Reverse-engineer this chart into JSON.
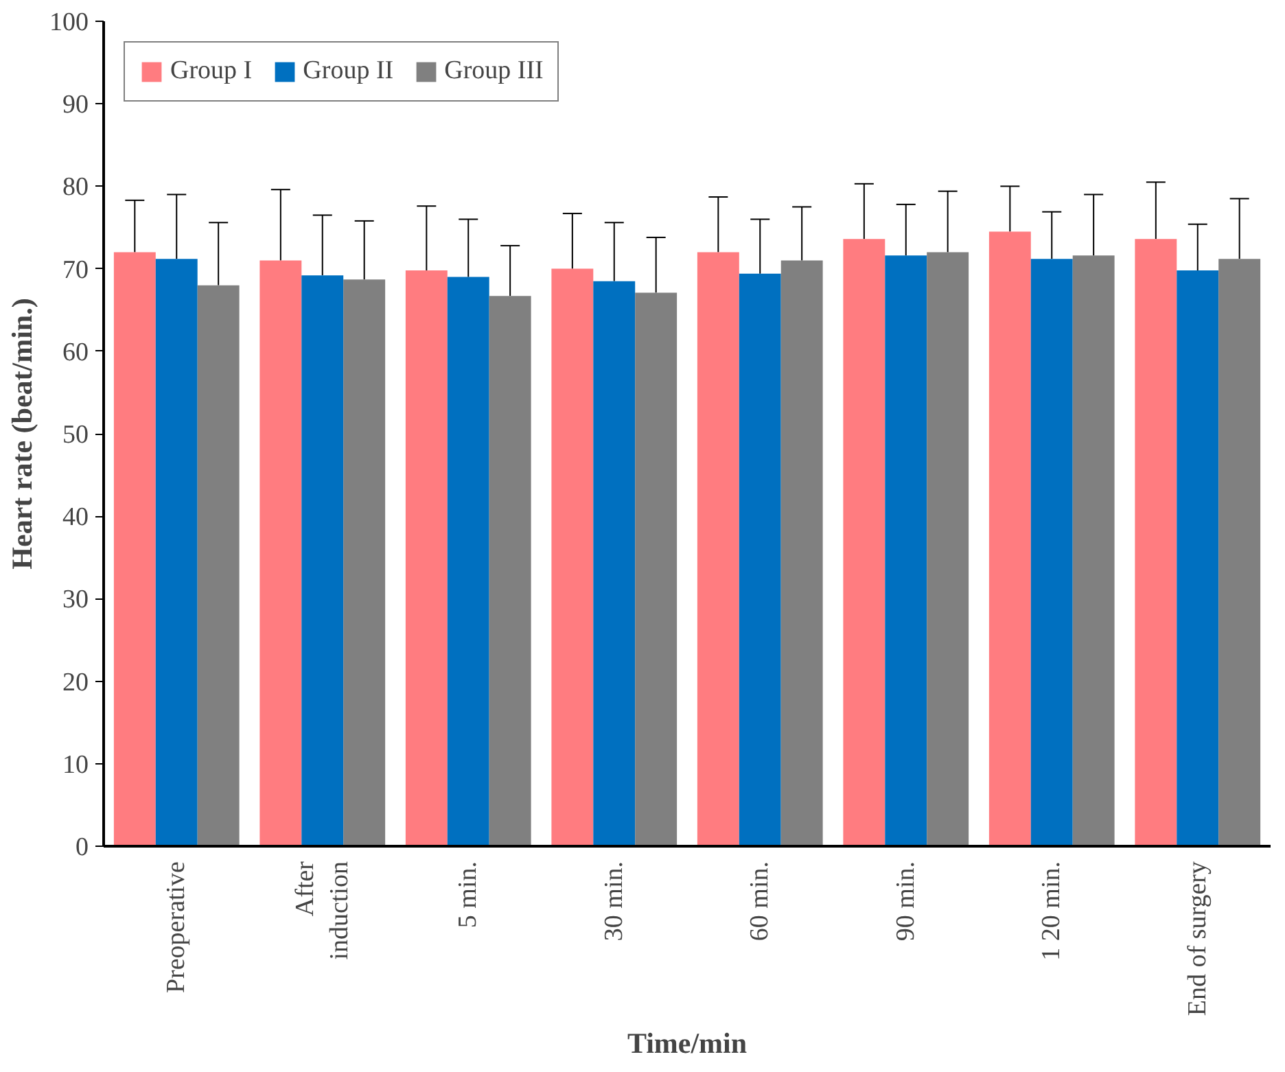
{
  "chart_data": {
    "type": "bar",
    "xlabel": "Time/min",
    "ylabel": "Heart rate (beat/min.)",
    "categories": [
      "Preoperative",
      "After\ninduction",
      "5 min.",
      "30 min.",
      "60 min.",
      "90 min.",
      "1 20 min.",
      "End of surgery"
    ],
    "series": [
      {
        "name": "Group I",
        "color": "#ff7c80",
        "values": [
          72,
          71,
          69.8,
          70,
          72,
          73.6,
          74.5,
          73.6
        ],
        "errors": [
          [
            72,
            78.3
          ],
          [
            71,
            79.6
          ],
          [
            69.8,
            77.6
          ],
          [
            70,
            76.7
          ],
          [
            72,
            78.7
          ],
          [
            73.6,
            80.3
          ],
          [
            74.5,
            80
          ],
          [
            73.6,
            80.5
          ]
        ]
      },
      {
        "name": "Group II",
        "color": "#0070c0",
        "values": [
          71.2,
          69.2,
          69,
          68.5,
          69.4,
          71.6,
          71.2,
          69.8
        ],
        "errors": [
          [
            71.2,
            79
          ],
          [
            69.2,
            76.5
          ],
          [
            69,
            76
          ],
          [
            68.5,
            75.6
          ],
          [
            69.4,
            76
          ],
          [
            71.6,
            77.8
          ],
          [
            71.2,
            76.9
          ],
          [
            69.8,
            75.4
          ]
        ]
      },
      {
        "name": "Group III",
        "color": "#808080",
        "values": [
          68,
          68.7,
          66.7,
          67.1,
          71,
          72,
          71.6,
          71.2
        ],
        "errors": [
          [
            68,
            75.6
          ],
          [
            68.7,
            75.8
          ],
          [
            66.7,
            72.8
          ],
          [
            67.1,
            73.8
          ],
          [
            71,
            77.5
          ],
          [
            72,
            79.4
          ],
          [
            71.6,
            79
          ],
          [
            71.2,
            78.5
          ]
        ]
      }
    ],
    "ylim": [
      0,
      100
    ],
    "yticks": [
      0,
      10,
      20,
      30,
      40,
      50,
      60,
      70,
      80,
      90,
      100
    ],
    "grid": false,
    "legend": "top left"
  }
}
